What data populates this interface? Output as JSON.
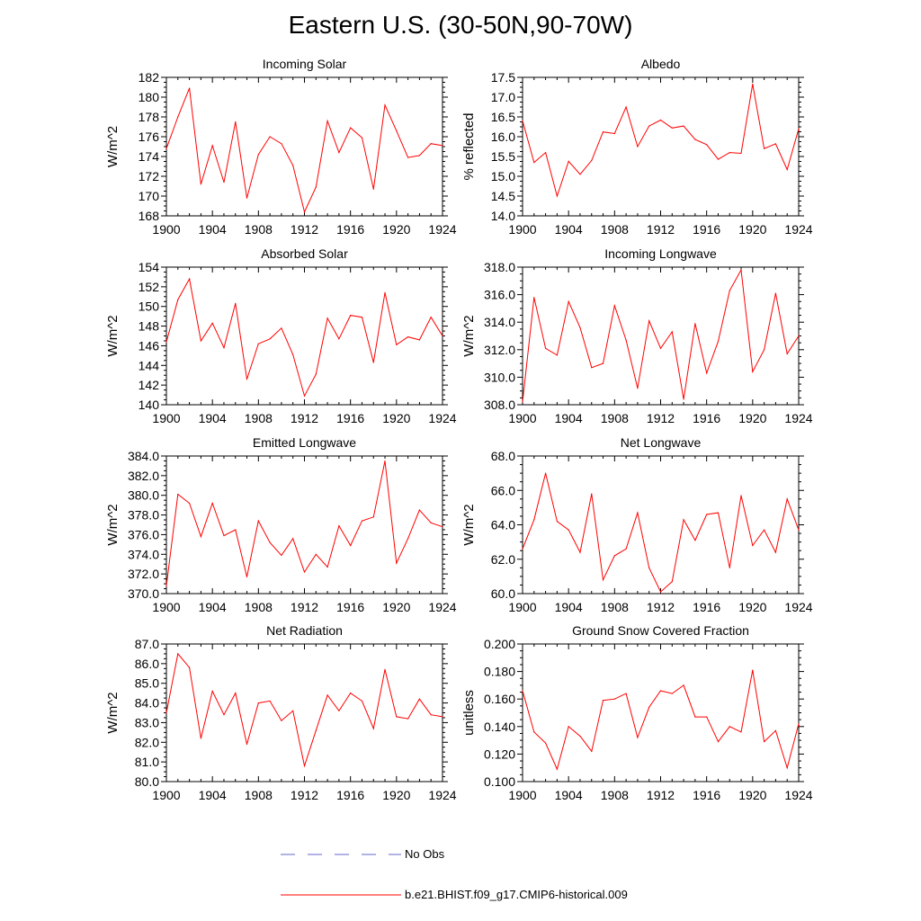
{
  "title": "Eastern U.S. (30-50N,90-70W)",
  "series_color": "#ff0000",
  "noobs_color": "#6666cc",
  "legend": {
    "noobs_label": "No Obs",
    "model_label": "b.e21.BHIST.f09_g17.CMIP6-historical.009"
  },
  "chart_data": [
    {
      "type": "line",
      "title": "Incoming Solar",
      "ylabel": "W/m^2",
      "xlim": [
        1900,
        1924
      ],
      "ylim": [
        168,
        182
      ],
      "xticks": [
        "1900",
        "1904",
        "1908",
        "1912",
        "1916",
        "1920",
        "1924"
      ],
      "yticks": [
        "168",
        "170",
        "172",
        "174",
        "176",
        "178",
        "180",
        "182"
      ],
      "x": [
        1900,
        1901,
        1902,
        1903,
        1904,
        1905,
        1906,
        1907,
        1908,
        1909,
        1910,
        1911,
        1912,
        1913,
        1914,
        1915,
        1916,
        1917,
        1918,
        1919,
        1920,
        1921,
        1922,
        1923,
        1924
      ],
      "values": [
        174.8,
        178.0,
        180.9,
        171.2,
        175.1,
        171.4,
        177.5,
        169.8,
        174.2,
        176.0,
        175.3,
        173.1,
        168.4,
        170.9,
        177.6,
        174.4,
        176.9,
        175.9,
        170.7,
        179.2,
        176.6,
        173.9,
        174.1,
        175.3,
        175.1
      ]
    },
    {
      "type": "line",
      "title": "Albedo",
      "ylabel": "% reflected",
      "xlim": [
        1900,
        1924
      ],
      "ylim": [
        14.0,
        17.5
      ],
      "xticks": [
        "1900",
        "1904",
        "1908",
        "1912",
        "1916",
        "1920",
        "1924"
      ],
      "yticks": [
        "14.0",
        "14.5",
        "15.0",
        "15.5",
        "16.0",
        "16.5",
        "17.0",
        "17.5"
      ],
      "x": [
        1900,
        1901,
        1902,
        1903,
        1904,
        1905,
        1906,
        1907,
        1908,
        1909,
        1910,
        1911,
        1912,
        1913,
        1914,
        1915,
        1916,
        1917,
        1918,
        1919,
        1920,
        1921,
        1922,
        1923,
        1924
      ],
      "values": [
        16.4,
        15.35,
        15.6,
        14.5,
        15.38,
        15.05,
        15.4,
        16.12,
        16.08,
        16.75,
        15.75,
        16.27,
        16.42,
        16.22,
        16.27,
        15.93,
        15.8,
        15.43,
        15.6,
        15.58,
        17.33,
        15.7,
        15.82,
        15.17,
        16.2
      ]
    },
    {
      "type": "line",
      "title": "Absorbed Solar",
      "ylabel": "W/m^2",
      "xlim": [
        1900,
        1924
      ],
      "ylim": [
        140,
        154
      ],
      "xticks": [
        "1900",
        "1904",
        "1908",
        "1912",
        "1916",
        "1920",
        "1924"
      ],
      "yticks": [
        "140",
        "142",
        "144",
        "146",
        "148",
        "150",
        "152",
        "154"
      ],
      "x": [
        1900,
        1901,
        1902,
        1903,
        1904,
        1905,
        1906,
        1907,
        1908,
        1909,
        1910,
        1911,
        1912,
        1913,
        1914,
        1915,
        1916,
        1917,
        1918,
        1919,
        1920,
        1921,
        1922,
        1923,
        1924
      ],
      "values": [
        146.4,
        150.7,
        152.8,
        146.5,
        148.3,
        145.8,
        150.3,
        142.6,
        146.2,
        146.7,
        147.8,
        145.1,
        140.9,
        143.1,
        148.8,
        146.7,
        149.1,
        148.9,
        144.3,
        151.4,
        146.1,
        146.9,
        146.6,
        148.9,
        147.0
      ]
    },
    {
      "type": "line",
      "title": "Incoming Longwave",
      "ylabel": "W/m^2",
      "xlim": [
        1900,
        1924
      ],
      "ylim": [
        308.0,
        318.0
      ],
      "xticks": [
        "1900",
        "1904",
        "1908",
        "1912",
        "1916",
        "1920",
        "1924"
      ],
      "yticks": [
        "308.0",
        "310.0",
        "312.0",
        "314.0",
        "316.0",
        "318.0"
      ],
      "x": [
        1900,
        1901,
        1902,
        1903,
        1904,
        1905,
        1906,
        1907,
        1908,
        1909,
        1910,
        1911,
        1912,
        1913,
        1914,
        1915,
        1916,
        1917,
        1918,
        1919,
        1920,
        1921,
        1922,
        1923,
        1924
      ],
      "values": [
        308.2,
        315.8,
        312.1,
        311.6,
        315.5,
        313.6,
        310.7,
        311.0,
        315.2,
        312.7,
        309.2,
        314.1,
        312.1,
        313.3,
        308.4,
        313.9,
        310.3,
        312.6,
        316.3,
        317.8,
        310.4,
        312.0,
        316.1,
        311.7,
        313.0
      ]
    },
    {
      "type": "line",
      "title": "Emitted Longwave",
      "ylabel": "W/m^2",
      "xlim": [
        1900,
        1924
      ],
      "ylim": [
        370.0,
        384.0
      ],
      "xticks": [
        "1900",
        "1904",
        "1908",
        "1912",
        "1916",
        "1920",
        "1924"
      ],
      "yticks": [
        "370.0",
        "372.0",
        "374.0",
        "376.0",
        "378.0",
        "380.0",
        "382.0",
        "384.0"
      ],
      "x": [
        1900,
        1901,
        1902,
        1903,
        1904,
        1905,
        1906,
        1907,
        1908,
        1909,
        1910,
        1911,
        1912,
        1913,
        1914,
        1915,
        1916,
        1917,
        1918,
        1919,
        1920,
        1921,
        1922,
        1923,
        1924
      ],
      "values": [
        370.8,
        380.1,
        379.2,
        375.8,
        379.2,
        375.9,
        376.5,
        371.7,
        377.4,
        375.2,
        373.9,
        375.6,
        372.2,
        374.0,
        372.7,
        376.9,
        374.9,
        377.4,
        377.8,
        383.5,
        373.1,
        375.6,
        378.5,
        377.2,
        376.8
      ]
    },
    {
      "type": "line",
      "title": "Net Longwave",
      "ylabel": "W/m^2",
      "xlim": [
        1900,
        1924
      ],
      "ylim": [
        60.0,
        68.0
      ],
      "xticks": [
        "1900",
        "1904",
        "1908",
        "1912",
        "1916",
        "1920",
        "1924"
      ],
      "yticks": [
        "60.0",
        "62.0",
        "64.0",
        "66.0",
        "68.0"
      ],
      "x": [
        1900,
        1901,
        1902,
        1903,
        1904,
        1905,
        1906,
        1907,
        1908,
        1909,
        1910,
        1911,
        1912,
        1913,
        1914,
        1915,
        1916,
        1917,
        1918,
        1919,
        1920,
        1921,
        1922,
        1923,
        1924
      ],
      "values": [
        62.6,
        64.3,
        67.0,
        64.2,
        63.7,
        62.4,
        65.8,
        60.8,
        62.2,
        62.6,
        64.7,
        61.5,
        60.1,
        60.7,
        64.3,
        63.1,
        64.6,
        64.7,
        61.5,
        65.7,
        62.8,
        63.7,
        62.4,
        65.5,
        63.7
      ]
    },
    {
      "type": "line",
      "title": "Net Radiation",
      "ylabel": "W/m^2",
      "xlim": [
        1900,
        1924
      ],
      "ylim": [
        80.0,
        87.0
      ],
      "xticks": [
        "1900",
        "1904",
        "1908",
        "1912",
        "1916",
        "1920",
        "1924"
      ],
      "yticks": [
        "80.0",
        "81.0",
        "82.0",
        "83.0",
        "84.0",
        "85.0",
        "86.0",
        "87.0"
      ],
      "x": [
        1900,
        1901,
        1902,
        1903,
        1904,
        1905,
        1906,
        1907,
        1908,
        1909,
        1910,
        1911,
        1912,
        1913,
        1914,
        1915,
        1916,
        1917,
        1918,
        1919,
        1920,
        1921,
        1922,
        1923,
        1924
      ],
      "values": [
        83.5,
        86.5,
        85.8,
        82.2,
        84.6,
        83.4,
        84.5,
        81.9,
        84.0,
        84.1,
        83.1,
        83.6,
        80.8,
        82.6,
        84.4,
        83.6,
        84.5,
        84.1,
        82.7,
        85.7,
        83.3,
        83.2,
        84.2,
        83.4,
        83.3
      ]
    },
    {
      "type": "line",
      "title": "Ground Snow Covered Fraction",
      "ylabel": "unitless",
      "xlim": [
        1900,
        1924
      ],
      "ylim": [
        0.1,
        0.2
      ],
      "xticks": [
        "1900",
        "1904",
        "1908",
        "1912",
        "1916",
        "1920",
        "1924"
      ],
      "yticks": [
        "0.100",
        "0.120",
        "0.140",
        "0.160",
        "0.180",
        "0.200"
      ],
      "x": [
        1900,
        1901,
        1902,
        1903,
        1904,
        1905,
        1906,
        1907,
        1908,
        1909,
        1910,
        1911,
        1912,
        1913,
        1914,
        1915,
        1916,
        1917,
        1918,
        1919,
        1920,
        1921,
        1922,
        1923,
        1924
      ],
      "values": [
        0.166,
        0.136,
        0.128,
        0.109,
        0.14,
        0.133,
        0.122,
        0.159,
        0.16,
        0.164,
        0.132,
        0.154,
        0.166,
        0.164,
        0.17,
        0.147,
        0.147,
        0.129,
        0.14,
        0.136,
        0.181,
        0.129,
        0.137,
        0.11,
        0.142
      ]
    }
  ]
}
